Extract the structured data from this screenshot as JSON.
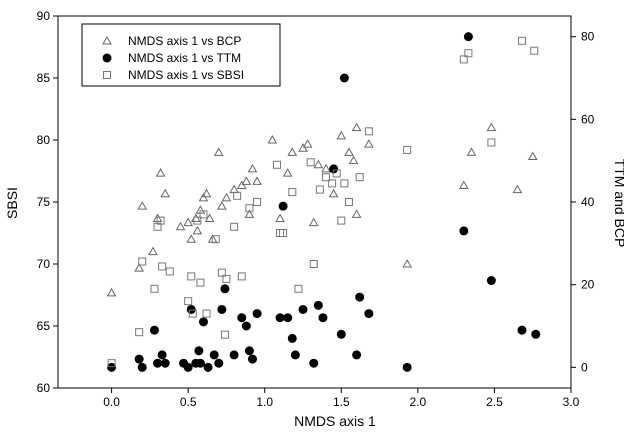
{
  "chart_data": {
    "type": "scatter",
    "xlabel": "NMDS axis 1",
    "ylabel_left": "SBSI",
    "ylabel_right": "TTM and BCP",
    "xlim": [
      -0.35,
      3.0
    ],
    "ylim_left": [
      60,
      90
    ],
    "ylim_right": [
      -5,
      85
    ],
    "x_ticks": [
      "0.0",
      "0.5",
      "1.0",
      "1.5",
      "2.0",
      "2.5",
      "3.0"
    ],
    "x_tick_values": [
      0,
      0.5,
      1.0,
      1.5,
      2.0,
      2.5,
      3.0
    ],
    "y_left_ticks": [
      "60",
      "65",
      "70",
      "75",
      "80",
      "85",
      "90"
    ],
    "y_left_tick_values": [
      60,
      65,
      70,
      75,
      80,
      85,
      90
    ],
    "y_right_ticks": [
      "0",
      "20",
      "40",
      "60",
      "80"
    ],
    "y_right_tick_values": [
      0,
      20,
      40,
      60,
      80
    ],
    "grid": false,
    "legend_position": "top-left",
    "series": [
      {
        "name": "NMDS axis 1 vs BCP",
        "axis": "right",
        "marker": "open-triangle",
        "points": [
          [
            0.0,
            18
          ],
          [
            0.18,
            24
          ],
          [
            0.2,
            39
          ],
          [
            0.27,
            28
          ],
          [
            0.3,
            36
          ],
          [
            0.32,
            47
          ],
          [
            0.35,
            42
          ],
          [
            0.45,
            34
          ],
          [
            0.5,
            35
          ],
          [
            0.52,
            31
          ],
          [
            0.55,
            36
          ],
          [
            0.56,
            33
          ],
          [
            0.58,
            38
          ],
          [
            0.6,
            41
          ],
          [
            0.62,
            42
          ],
          [
            0.64,
            36
          ],
          [
            0.66,
            31
          ],
          [
            0.7,
            52
          ],
          [
            0.72,
            39
          ],
          [
            0.75,
            41
          ],
          [
            0.8,
            43
          ],
          [
            0.85,
            44
          ],
          [
            0.88,
            45
          ],
          [
            0.9,
            37
          ],
          [
            0.92,
            48
          ],
          [
            0.95,
            45
          ],
          [
            1.05,
            55
          ],
          [
            1.1,
            36
          ],
          [
            1.15,
            47
          ],
          [
            1.18,
            52
          ],
          [
            1.25,
            53
          ],
          [
            1.28,
            54
          ],
          [
            1.32,
            35
          ],
          [
            1.35,
            49
          ],
          [
            1.4,
            48
          ],
          [
            1.45,
            42
          ],
          [
            1.5,
            56
          ],
          [
            1.55,
            52
          ],
          [
            1.58,
            50
          ],
          [
            1.6,
            58
          ],
          [
            1.6,
            37
          ],
          [
            1.68,
            54
          ],
          [
            1.93,
            25
          ],
          [
            2.3,
            44
          ],
          [
            2.35,
            52
          ],
          [
            2.48,
            58
          ],
          [
            2.65,
            43
          ],
          [
            2.75,
            51
          ]
        ]
      },
      {
        "name": "NMDS axis 1 vs TTM",
        "axis": "right",
        "marker": "filled-circle",
        "points": [
          [
            0.0,
            0
          ],
          [
            0.18,
            2
          ],
          [
            0.2,
            0
          ],
          [
            0.28,
            9
          ],
          [
            0.3,
            1
          ],
          [
            0.33,
            3
          ],
          [
            0.35,
            1
          ],
          [
            0.47,
            1
          ],
          [
            0.5,
            0
          ],
          [
            0.52,
            14
          ],
          [
            0.55,
            1
          ],
          [
            0.57,
            4
          ],
          [
            0.58,
            1
          ],
          [
            0.6,
            11
          ],
          [
            0.63,
            0
          ],
          [
            0.67,
            3
          ],
          [
            0.7,
            1
          ],
          [
            0.72,
            14
          ],
          [
            0.74,
            19
          ],
          [
            0.8,
            3
          ],
          [
            0.85,
            12
          ],
          [
            0.88,
            10
          ],
          [
            0.9,
            4
          ],
          [
            0.92,
            2
          ],
          [
            0.95,
            13
          ],
          [
            1.1,
            12
          ],
          [
            1.12,
            39
          ],
          [
            1.15,
            12
          ],
          [
            1.18,
            7
          ],
          [
            1.2,
            3
          ],
          [
            1.25,
            14
          ],
          [
            1.32,
            1
          ],
          [
            1.35,
            15
          ],
          [
            1.38,
            12
          ],
          [
            1.45,
            48
          ],
          [
            1.5,
            8
          ],
          [
            1.52,
            70
          ],
          [
            1.6,
            3
          ],
          [
            1.62,
            17
          ],
          [
            1.68,
            13
          ],
          [
            1.93,
            0
          ],
          [
            2.3,
            33
          ],
          [
            2.33,
            80
          ],
          [
            2.48,
            21
          ],
          [
            2.68,
            9
          ],
          [
            2.77,
            8
          ]
        ]
      },
      {
        "name": "NMDS axis 1 vs SBSI",
        "axis": "left",
        "marker": "open-square",
        "points": [
          [
            0.0,
            62
          ],
          [
            0.18,
            64.5
          ],
          [
            0.2,
            70.2
          ],
          [
            0.28,
            68
          ],
          [
            0.3,
            73
          ],
          [
            0.32,
            73.5
          ],
          [
            0.33,
            69.8
          ],
          [
            0.38,
            69.4
          ],
          [
            0.5,
            67
          ],
          [
            0.52,
            69
          ],
          [
            0.53,
            66
          ],
          [
            0.56,
            73.5
          ],
          [
            0.58,
            68.5
          ],
          [
            0.6,
            74
          ],
          [
            0.62,
            66
          ],
          [
            0.68,
            72
          ],
          [
            0.72,
            69.3
          ],
          [
            0.74,
            64.3
          ],
          [
            0.75,
            68.8
          ],
          [
            0.8,
            73
          ],
          [
            0.82,
            75.5
          ],
          [
            0.85,
            69
          ],
          [
            0.9,
            74.5
          ],
          [
            0.95,
            75
          ],
          [
            1.08,
            78
          ],
          [
            1.1,
            72.5
          ],
          [
            1.12,
            72.5
          ],
          [
            1.18,
            75.8
          ],
          [
            1.22,
            68
          ],
          [
            1.3,
            78.2
          ],
          [
            1.32,
            70
          ],
          [
            1.36,
            76
          ],
          [
            1.4,
            77
          ],
          [
            1.44,
            76.5
          ],
          [
            1.47,
            77.3
          ],
          [
            1.5,
            73.5
          ],
          [
            1.52,
            76.5
          ],
          [
            1.55,
            75
          ],
          [
            1.62,
            77
          ],
          [
            1.68,
            80.7
          ],
          [
            1.93,
            79.2
          ],
          [
            2.3,
            86.5
          ],
          [
            2.33,
            87
          ],
          [
            2.48,
            79.8
          ],
          [
            2.68,
            88
          ],
          [
            2.76,
            87.2
          ]
        ]
      }
    ]
  }
}
